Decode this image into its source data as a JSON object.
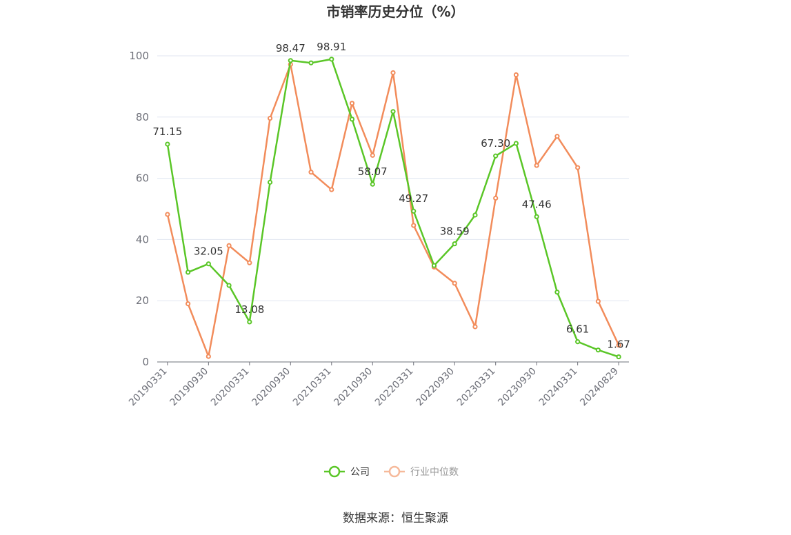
{
  "chart_data": {
    "type": "line",
    "title": "市销率历史分位（%）",
    "source": "数据来源：恒生聚源",
    "ylim": [
      0,
      100
    ],
    "yticks": [
      "0",
      "20",
      "40",
      "60",
      "80",
      "100"
    ],
    "x": [
      "20190331",
      "20190630",
      "20190930",
      "20191231",
      "20200331",
      "20200630",
      "20200930",
      "20201231",
      "20210331",
      "20210630",
      "20210930",
      "20211231",
      "20220331",
      "20220630",
      "20220930",
      "20221231",
      "20230331",
      "20230630",
      "20230930",
      "20231231",
      "20240331",
      "20240630",
      "20240829"
    ],
    "x_tick_labels": [
      "20190331",
      "20190930",
      "20200331",
      "20200930",
      "20210331",
      "20210930",
      "20220331",
      "20220930",
      "20230331",
      "20230930",
      "20240331",
      "20240829"
    ],
    "grid": true,
    "legend_position": "bottom",
    "series": [
      {
        "name": "公司",
        "color": "#5ac627",
        "values": [
          71.15,
          29.3,
          32.05,
          25.0,
          13.08,
          58.7,
          98.47,
          97.7,
          98.91,
          79.3,
          58.07,
          81.8,
          49.27,
          31.5,
          38.59,
          48.0,
          67.3,
          71.4,
          47.46,
          22.8,
          6.61,
          3.9,
          1.67
        ],
        "labels": [
          "71.15",
          null,
          "32.05",
          null,
          "13.08",
          null,
          "98.47",
          null,
          "98.91",
          null,
          "58.07",
          null,
          "49.27",
          null,
          "38.59",
          null,
          "67.30",
          null,
          "47.46",
          null,
          "6.61",
          null,
          "1.67"
        ]
      },
      {
        "name": "行业中位数",
        "color": "#f28c5b",
        "values": [
          48.2,
          19.0,
          1.8,
          38.0,
          32.4,
          79.6,
          97.2,
          62.0,
          56.3,
          84.5,
          67.5,
          94.5,
          44.6,
          31.0,
          25.7,
          11.5,
          53.5,
          93.8,
          64.2,
          73.7,
          63.5,
          19.8,
          5.5
        ]
      }
    ]
  }
}
